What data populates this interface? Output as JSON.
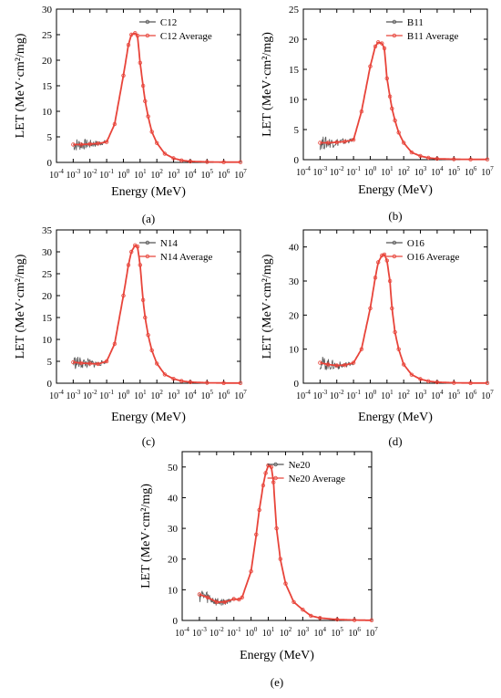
{
  "figure": {
    "panels": [
      {
        "label": "(a)",
        "xlabel": "Energy (MeV)",
        "ylabel": "LET (MeV·cm²/mg)"
      },
      {
        "label": "(b)",
        "xlabel": "Energy (MeV)",
        "ylabel": "LET (MeV·cm²/mg)"
      },
      {
        "label": "(c)",
        "xlabel": "Energy (MeV)",
        "ylabel": "LET (MeV·cm²/mg)"
      },
      {
        "label": "(d)",
        "xlabel": "Energy (MeV)",
        "ylabel": "LET (MeV·cm²/mg)"
      },
      {
        "label": "(e)",
        "xlabel": "Energy (MeV)",
        "ylabel": "LET (MeV·cm²/mg)"
      }
    ]
  },
  "colors": {
    "raw": "#555555",
    "average": "#e8443a",
    "axis": "#000000"
  },
  "chart_data": [
    {
      "type": "line",
      "label": "(a)",
      "x_scale": "log",
      "x_exponent_ticks": [
        -4,
        -3,
        -2,
        -1,
        0,
        1,
        2,
        3,
        4,
        5,
        6,
        7
      ],
      "xlabel": "Energy (MeV)",
      "ylabel": "LET (MeV·cm²/mg)",
      "xlim": [
        0.0001,
        10000000
      ],
      "ylim": [
        0,
        30
      ],
      "yticks": [
        0,
        5,
        10,
        15,
        20,
        25,
        30
      ],
      "legend": "top-right",
      "series": [
        {
          "name": "C12",
          "style": "raw"
        },
        {
          "name": "C12 Average",
          "style": "average"
        }
      ],
      "x": [
        0.001,
        0.003,
        0.01,
        0.03,
        0.1,
        0.3,
        1,
        2,
        3,
        5,
        7,
        10,
        15,
        20,
        30,
        50,
        100,
        300,
        1000,
        3000,
        10000,
        100000,
        1000000,
        10000000
      ],
      "y": [
        3.5,
        3.5,
        3.6,
        3.7,
        4.0,
        7.5,
        17,
        23,
        25,
        25.3,
        24.8,
        19.5,
        15,
        12,
        9,
        6,
        3.8,
        1.7,
        0.8,
        0.4,
        0.2,
        0.1,
        0.05,
        0.05
      ]
    },
    {
      "type": "line",
      "label": "(b)",
      "x_scale": "log",
      "x_exponent_ticks": [
        -4,
        -3,
        -2,
        -1,
        0,
        1,
        2,
        3,
        4,
        5,
        6,
        7
      ],
      "xlabel": "Energy (MeV)",
      "ylabel": "LET (MeV·cm²/mg)",
      "xlim": [
        0.0001,
        10000000
      ],
      "ylim": [
        0,
        25
      ],
      "yticks": [
        0,
        5,
        10,
        15,
        20,
        25
      ],
      "legend": "top-right",
      "series": [
        {
          "name": "B11",
          "style": "raw"
        },
        {
          "name": "B11 Average",
          "style": "average"
        }
      ],
      "x": [
        0.001,
        0.003,
        0.01,
        0.03,
        0.1,
        0.3,
        1,
        2,
        3,
        5,
        7,
        10,
        15,
        20,
        30,
        50,
        100,
        300,
        1000,
        3000,
        10000,
        100000,
        1000000,
        10000000
      ],
      "y": [
        2.8,
        2.8,
        2.9,
        3.0,
        3.3,
        8,
        15.5,
        18.8,
        19.5,
        19.3,
        18.5,
        13.5,
        10.5,
        8.5,
        6.5,
        4.5,
        2.8,
        1.2,
        0.6,
        0.3,
        0.15,
        0.08,
        0.05,
        0.05
      ]
    },
    {
      "type": "line",
      "label": "(c)",
      "x_scale": "log",
      "x_exponent_ticks": [
        -4,
        -3,
        -2,
        -1,
        0,
        1,
        2,
        3,
        4,
        5,
        6,
        7
      ],
      "xlabel": "Energy (MeV)",
      "ylabel": "LET (MeV·cm²/mg)",
      "xlim": [
        0.0001,
        10000000
      ],
      "ylim": [
        0,
        35
      ],
      "yticks": [
        0,
        5,
        10,
        15,
        20,
        25,
        30,
        35
      ],
      "legend": "top-right",
      "series": [
        {
          "name": "N14",
          "style": "raw"
        },
        {
          "name": "N14 Average",
          "style": "average"
        }
      ],
      "x": [
        0.001,
        0.003,
        0.01,
        0.03,
        0.1,
        0.3,
        1,
        2,
        3,
        5,
        7,
        10,
        15,
        20,
        30,
        50,
        100,
        300,
        1000,
        3000,
        10000,
        100000,
        1000000,
        10000000
      ],
      "y": [
        4.8,
        4.6,
        4.5,
        4.4,
        5.0,
        9,
        20,
        27,
        30,
        31.5,
        31.2,
        27,
        19,
        15,
        11,
        7.5,
        4.5,
        2.0,
        1.0,
        0.5,
        0.25,
        0.1,
        0.05,
        0.05
      ]
    },
    {
      "type": "line",
      "label": "(d)",
      "x_scale": "log",
      "x_exponent_ticks": [
        -4,
        -3,
        -2,
        -1,
        0,
        1,
        2,
        3,
        4,
        5,
        6,
        7
      ],
      "xlabel": "Energy (MeV)",
      "ylabel": "LET (MeV·cm²/mg)",
      "xlim": [
        0.0001,
        10000000
      ],
      "ylim": [
        0,
        45
      ],
      "yticks": [
        0,
        10,
        20,
        30,
        40
      ],
      "legend": "top-right",
      "series": [
        {
          "name": "O16",
          "style": "raw"
        },
        {
          "name": "O16 Average",
          "style": "average"
        }
      ],
      "x": [
        0.001,
        0.003,
        0.01,
        0.03,
        0.1,
        0.3,
        1,
        2,
        3,
        5,
        7,
        10,
        15,
        20,
        30,
        50,
        100,
        300,
        1000,
        3000,
        10000,
        100000,
        1000000,
        10000000
      ],
      "y": [
        6.0,
        5.5,
        5.2,
        5.3,
        6.0,
        10,
        22,
        31,
        35.5,
        37.5,
        37.8,
        36,
        30,
        22,
        15,
        10,
        5.5,
        2.5,
        1.2,
        0.6,
        0.3,
        0.12,
        0.06,
        0.05
      ]
    },
    {
      "type": "line",
      "label": "(e)",
      "x_scale": "log",
      "x_exponent_ticks": [
        -4,
        -3,
        -2,
        -1,
        0,
        1,
        2,
        3,
        4,
        5,
        6,
        7
      ],
      "xlabel": "Energy (MeV)",
      "ylabel": "LET (MeV·cm²/mg)",
      "xlim": [
        0.0001,
        10000000
      ],
      "ylim": [
        0,
        55
      ],
      "yticks": [
        0,
        10,
        20,
        30,
        40,
        50
      ],
      "legend": "top-right",
      "series": [
        {
          "name": "Ne20",
          "style": "raw"
        },
        {
          "name": "Ne20 Average",
          "style": "average"
        }
      ],
      "x": [
        0.001,
        0.003,
        0.01,
        0.03,
        0.1,
        0.2,
        0.3,
        1,
        2,
        3,
        5,
        7,
        10,
        15,
        20,
        30,
        50,
        100,
        300,
        1000,
        3000,
        10000,
        100000,
        1000000,
        10000000
      ],
      "y": [
        8.5,
        7.5,
        6.0,
        6.0,
        7.0,
        6.8,
        7.5,
        16,
        28,
        36,
        44,
        48,
        50.5,
        50,
        45,
        30,
        20,
        12,
        6.0,
        3.5,
        1.5,
        0.8,
        0.3,
        0.12,
        0.05
      ]
    }
  ]
}
